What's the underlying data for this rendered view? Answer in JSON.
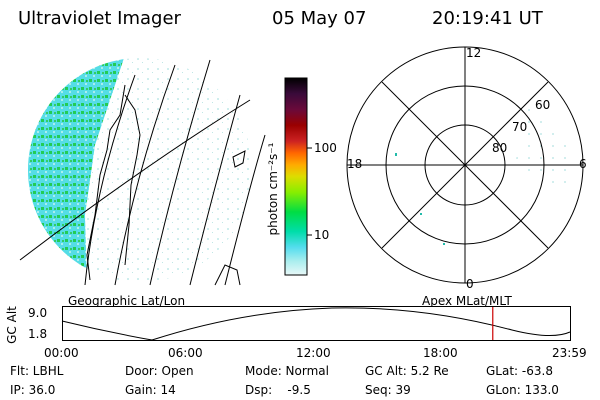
{
  "header": {
    "title": "Ultraviolet Imager",
    "date": "05 May 07",
    "time": "20:19:41 UT"
  },
  "colorbar": {
    "label": "photon cm⁻²s⁻¹",
    "ticks": [
      "100",
      "10"
    ],
    "colors": [
      "#000000",
      "#3a0a3a",
      "#6a0a3a",
      "#9a0000",
      "#cc2222",
      "#ff6600",
      "#ffaa00",
      "#dddd00",
      "#88ee00",
      "#00dd44",
      "#00ddaa",
      "#55ddee",
      "#aaeeee",
      "#e8f8f8"
    ]
  },
  "left_panel": {
    "caption": "Geographic Lat/Lon"
  },
  "right_panel": {
    "caption": "Apex MLat/MLT",
    "mlt_labels": {
      "top": "12",
      "left": "18",
      "right": "6",
      "bottom": "0"
    },
    "lat_labels": [
      "60",
      "70",
      "80"
    ]
  },
  "altitude_plot": {
    "ylabel": "GC Alt",
    "yticks": [
      "9.0",
      "1.8"
    ],
    "xticks": [
      "00:00",
      "06:00",
      "12:00",
      "18:00",
      "23:59"
    ],
    "current_time_fraction": 0.847
  },
  "status": {
    "flt": "Flt: LBHL",
    "ip": "IP: 36.0",
    "door": "Door: Open",
    "gain": "Gain: 14",
    "mode": "Mode: Normal",
    "dsp": "Dsp:    -9.5",
    "gc_alt": "GC Alt: 5.2 Re",
    "seq": "Seq: 39",
    "glat": "GLat: -63.8",
    "glon": "GLon: 133.0"
  }
}
